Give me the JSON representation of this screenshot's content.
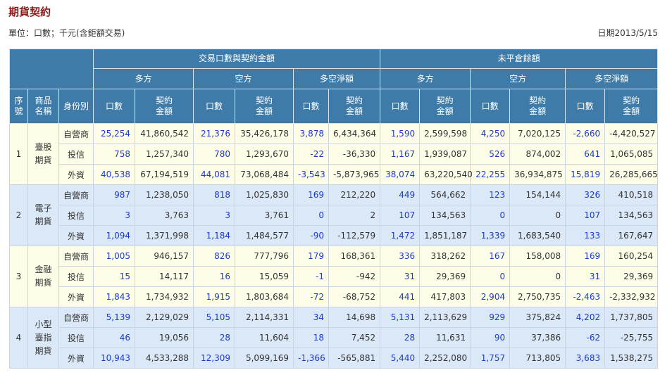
{
  "page": {
    "title": "期貨契約",
    "unit": "單位：口數；千元(含鉅額交易)",
    "date_label": "日期2013/5/15"
  },
  "headers": {
    "trade": "交易口數與契約金額",
    "open": "未平倉餘額",
    "long": "多方",
    "short": "空方",
    "net": "多空淨額",
    "seq": "序\n號",
    "product": "商品\n名稱",
    "identity": "身份別",
    "lots": "口數",
    "amount": "契約\n金額"
  },
  "groups": [
    {
      "seq": "1",
      "product": "臺股\n期貨",
      "rows": [
        {
          "identity": "自營商",
          "v": [
            "25,254",
            "41,860,542",
            "21,376",
            "35,426,178",
            "3,878",
            "6,434,364",
            "1,590",
            "2,599,598",
            "4,250",
            "7,020,125",
            "-2,660",
            "-4,420,527"
          ]
        },
        {
          "identity": "投信",
          "v": [
            "758",
            "1,257,340",
            "780",
            "1,293,670",
            "-22",
            "-36,330",
            "1,167",
            "1,939,087",
            "526",
            "874,002",
            "641",
            "1,065,085"
          ]
        },
        {
          "identity": "外資",
          "v": [
            "40,538",
            "67,194,519",
            "44,081",
            "73,068,484",
            "-3,543",
            "-5,873,965",
            "38,074",
            "63,220,540",
            "22,255",
            "36,934,875",
            "15,819",
            "26,285,665"
          ]
        }
      ]
    },
    {
      "seq": "2",
      "product": "電子\n期貨",
      "rows": [
        {
          "identity": "自營商",
          "v": [
            "987",
            "1,238,050",
            "818",
            "1,025,830",
            "169",
            "212,220",
            "449",
            "564,662",
            "123",
            "154,144",
            "326",
            "410,518"
          ]
        },
        {
          "identity": "投信",
          "v": [
            "3",
            "3,763",
            "3",
            "3,761",
            "0",
            "2",
            "107",
            "134,563",
            "0",
            "0",
            "107",
            "134,563"
          ]
        },
        {
          "identity": "外資",
          "v": [
            "1,094",
            "1,371,998",
            "1,184",
            "1,484,577",
            "-90",
            "-112,579",
            "1,472",
            "1,851,187",
            "1,339",
            "1,683,540",
            "133",
            "167,647"
          ]
        }
      ]
    },
    {
      "seq": "3",
      "product": "金融\n期貨",
      "rows": [
        {
          "identity": "自營商",
          "v": [
            "1,005",
            "946,157",
            "826",
            "777,796",
            "179",
            "168,361",
            "336",
            "318,262",
            "167",
            "158,008",
            "169",
            "160,254"
          ]
        },
        {
          "identity": "投信",
          "v": [
            "15",
            "14,117",
            "16",
            "15,059",
            "-1",
            "-942",
            "31",
            "29,369",
            "0",
            "0",
            "31",
            "29,369"
          ]
        },
        {
          "identity": "外資",
          "v": [
            "1,843",
            "1,734,932",
            "1,915",
            "1,803,684",
            "-72",
            "-68,752",
            "441",
            "417,803",
            "2,904",
            "2,750,735",
            "-2,463",
            "-2,332,932"
          ]
        }
      ]
    },
    {
      "seq": "4",
      "product": "小型\n臺指\n期貨",
      "rows": [
        {
          "identity": "自營商",
          "v": [
            "5,139",
            "2,129,029",
            "5,105",
            "2,114,331",
            "34",
            "14,698",
            "5,131",
            "2,113,629",
            "929",
            "375,824",
            "4,202",
            "1,737,805"
          ]
        },
        {
          "identity": "投信",
          "v": [
            "46",
            "19,056",
            "28",
            "11,604",
            "18",
            "7,452",
            "28",
            "11,631",
            "90",
            "37,386",
            "-62",
            "-25,755"
          ]
        },
        {
          "identity": "外資",
          "v": [
            "10,943",
            "4,533,288",
            "12,309",
            "5,099,169",
            "-1,366",
            "-565,881",
            "5,440",
            "2,252,080",
            "1,757",
            "713,805",
            "3,683",
            "1,538,275"
          ]
        }
      ]
    }
  ]
}
